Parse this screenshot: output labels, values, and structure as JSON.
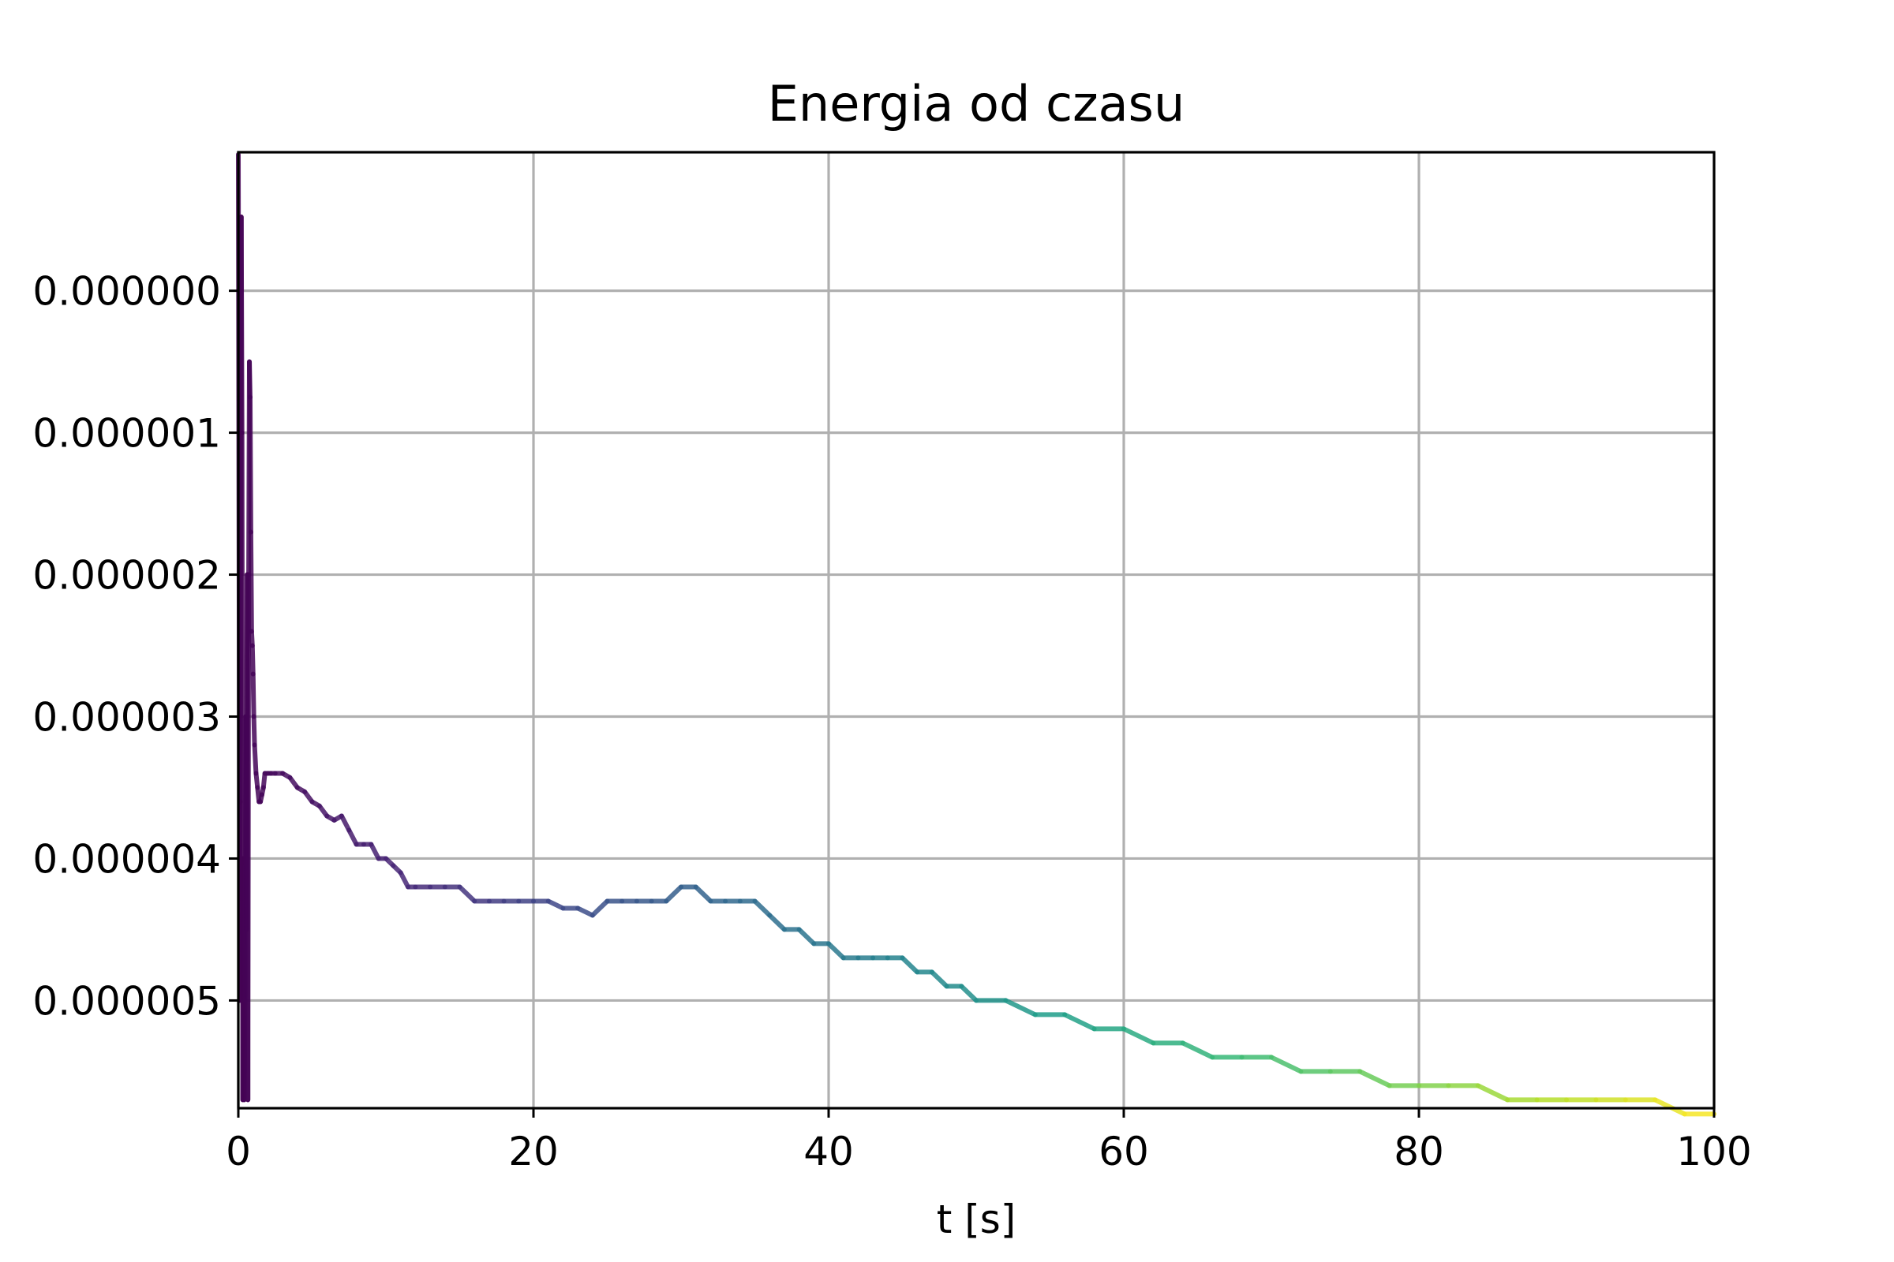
{
  "chart_data": {
    "type": "line",
    "title": "Energia od czasu",
    "xlabel": "t [s]",
    "ylabel": "",
    "xlim": [
      0,
      100
    ],
    "ylim": [
      -5.759e-06,
      9.76e-07
    ],
    "x_ticks": [
      0,
      20,
      40,
      60,
      80,
      100
    ],
    "x_tick_labels": [
      "0",
      "20",
      "40",
      "60",
      "80",
      "100"
    ],
    "y_ticks": [
      0,
      -1e-06,
      -2e-06,
      -3e-06,
      -4e-06,
      -5e-06
    ],
    "y_tick_labels": [
      "0.000000",
      "0.000001",
      "0.000002",
      "0.000003",
      "0.000004",
      "0.000005"
    ],
    "grid": true,
    "colormap": "viridis",
    "color_by": "x",
    "series": [
      {
        "x": [
          0,
          0.05,
          0.1,
          0.15,
          0.2,
          0.25,
          0.3,
          0.35,
          0.4,
          0.45,
          0.5,
          0.55,
          0.6,
          0.65,
          0.7,
          0.75,
          0.8,
          0.85,
          0.9,
          0.95,
          1.0,
          1.05,
          1.1,
          1.2,
          1.3,
          1.4,
          1.5,
          1.6,
          1.7,
          1.8,
          2.0,
          2.2,
          2.5,
          3,
          3.5,
          4,
          4.5,
          5,
          5.5,
          6,
          6.5,
          7,
          7.5,
          8,
          8.5,
          9,
          9.5,
          10,
          10.5,
          11,
          11.5,
          12,
          13,
          14,
          15,
          16,
          17,
          18,
          19,
          20,
          21,
          22,
          23,
          24,
          25,
          26,
          27,
          28,
          29,
          30,
          31,
          32,
          33,
          34,
          35,
          36,
          37,
          38,
          39,
          40,
          41,
          42,
          43,
          44,
          45,
          46,
          47,
          48,
          49,
          50,
          52,
          54,
          56,
          58,
          60,
          62,
          64,
          66,
          68,
          70,
          72,
          74,
          76,
          78,
          80,
          82,
          84,
          86,
          88,
          90,
          92,
          94,
          96,
          98,
          100
        ],
        "y": [
          9.6e-07,
          -2e-06,
          -5e-06,
          -3.6e-06,
          5.2e-07,
          -1e-06,
          -5.7e-06,
          -4e-06,
          -5.7e-06,
          -5e-06,
          -3e-06,
          -4.5e-06,
          -2e-06,
          -5.7e-06,
          -2e-06,
          -5e-07,
          -7.5e-07,
          -1.7e-06,
          -2.4e-06,
          -2.5e-06,
          -2.7e-06,
          -3e-06,
          -3.2e-06,
          -3.4e-06,
          -3.5e-06,
          -3.6e-06,
          -3.6e-06,
          -3.55e-06,
          -3.5e-06,
          -3.4e-06,
          -3.4e-06,
          -3.4e-06,
          -3.4e-06,
          -3.4e-06,
          -3.43e-06,
          -3.5e-06,
          -3.53e-06,
          -3.6e-06,
          -3.63e-06,
          -3.7e-06,
          -3.73e-06,
          -3.7e-06,
          -3.8e-06,
          -3.9e-06,
          -3.9e-06,
          -3.9e-06,
          -4e-06,
          -4e-06,
          -4.05e-06,
          -4.1e-06,
          -4.2e-06,
          -4.2e-06,
          -4.2e-06,
          -4.2e-06,
          -4.2e-06,
          -4.3e-06,
          -4.3e-06,
          -4.3e-06,
          -4.3e-06,
          -4.3e-06,
          -4.3e-06,
          -4.35e-06,
          -4.35e-06,
          -4.4e-06,
          -4.3e-06,
          -4.3e-06,
          -4.3e-06,
          -4.3e-06,
          -4.3e-06,
          -4.2e-06,
          -4.2e-06,
          -4.3e-06,
          -4.3e-06,
          -4.3e-06,
          -4.3e-06,
          -4.4e-06,
          -4.5e-06,
          -4.5e-06,
          -4.6e-06,
          -4.6e-06,
          -4.7e-06,
          -4.7e-06,
          -4.7e-06,
          -4.7e-06,
          -4.7e-06,
          -4.8e-06,
          -4.8e-06,
          -4.9e-06,
          -4.9e-06,
          -5e-06,
          -5e-06,
          -5.1e-06,
          -5.1e-06,
          -5.2e-06,
          -5.2e-06,
          -5.3e-06,
          -5.3e-06,
          -5.4e-06,
          -5.4e-06,
          -5.4e-06,
          -5.5e-06,
          -5.5e-06,
          -5.5e-06,
          -5.6e-06,
          -5.6e-06,
          -5.6e-06,
          -5.6e-06,
          -5.7e-06,
          -5.7e-06,
          -5.7e-06,
          -5.7e-06,
          -5.7e-06,
          -5.7e-06,
          -5.8e-06,
          -5.8e-06
        ]
      }
    ]
  }
}
